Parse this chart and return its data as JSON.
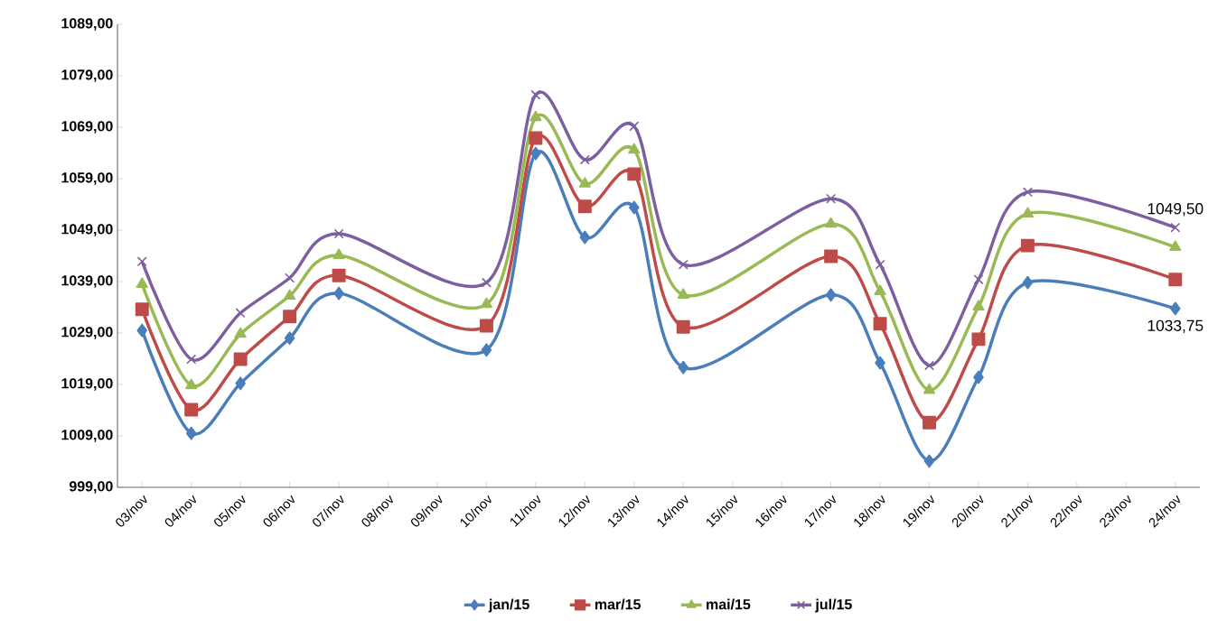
{
  "chart_data": {
    "type": "line",
    "categories": [
      "03/nov",
      "04/nov",
      "05/nov",
      "06/nov",
      "07/nov",
      "08/nov",
      "09/nov",
      "10/nov",
      "11/nov",
      "12/nov",
      "13/nov",
      "14/nov",
      "15/nov",
      "16/nov",
      "17/nov",
      "18/nov",
      "19/nov",
      "20/nov",
      "21/nov",
      "22/nov",
      "23/nov",
      "24/nov"
    ],
    "series": [
      {
        "name": "jan/15",
        "color": "#4a7ebb",
        "marker": "diamond",
        "values": [
          1029.5,
          1009.5,
          1019.2,
          1028.0,
          1036.7,
          null,
          null,
          1025.7,
          1063.9,
          1047.6,
          1053.4,
          1022.3,
          null,
          null,
          1036.4,
          1023.2,
          1004.1,
          1020.4,
          1038.8,
          null,
          null,
          1033.75
        ],
        "value_labels": [
          null,
          null,
          null,
          null,
          null,
          null,
          null,
          null,
          null,
          null,
          null,
          null,
          null,
          null,
          null,
          null,
          null,
          null,
          null,
          null,
          null,
          "1033,75"
        ]
      },
      {
        "name": "mar/15",
        "color": "#be4b48",
        "marker": "square",
        "values": [
          1033.6,
          1014.1,
          1023.9,
          1032.2,
          1040.2,
          null,
          null,
          1030.4,
          1066.9,
          1053.6,
          1059.9,
          1030.2,
          null,
          null,
          1043.9,
          1030.8,
          1011.6,
          1027.8,
          1046.0,
          null,
          null,
          1039.4
        ]
      },
      {
        "name": "mai/15",
        "color": "#98b954",
        "marker": "triangle",
        "values": [
          1038.5,
          1018.8,
          1028.8,
          1036.2,
          1044.1,
          null,
          null,
          1034.6,
          1070.9,
          1058.0,
          1064.6,
          1036.4,
          null,
          null,
          1050.2,
          1037.1,
          1017.9,
          1034.1,
          1052.2,
          null,
          null,
          1045.7
        ]
      },
      {
        "name": "jul/15",
        "color": "#7d5fa0",
        "marker": "cross",
        "values": [
          1042.9,
          1023.9,
          1032.9,
          1039.7,
          1048.3,
          null,
          null,
          1038.8,
          1075.3,
          1062.7,
          1069.2,
          1042.3,
          null,
          null,
          1055.1,
          1042.3,
          1022.7,
          1039.4,
          1056.4,
          null,
          null,
          1049.5
        ],
        "value_labels": [
          null,
          null,
          null,
          null,
          null,
          null,
          null,
          null,
          null,
          null,
          null,
          null,
          null,
          null,
          null,
          null,
          null,
          null,
          null,
          null,
          null,
          "1049,50"
        ]
      }
    ],
    "ylim": [
      999,
      1089
    ],
    "yticks": [
      {
        "value": 999,
        "label": "999,00"
      },
      {
        "value": 1009,
        "label": "1009,00"
      },
      {
        "value": 1019,
        "label": "1019,00"
      },
      {
        "value": 1029,
        "label": "1029,00"
      },
      {
        "value": 1039,
        "label": "1039,00"
      },
      {
        "value": 1049,
        "label": "1049,00"
      },
      {
        "value": 1059,
        "label": "1059,00"
      },
      {
        "value": 1069,
        "label": "1069,00"
      },
      {
        "value": 1079,
        "label": "1079,00"
      },
      {
        "value": 1089,
        "label": "1089,00"
      }
    ],
    "legend": "bottom"
  }
}
